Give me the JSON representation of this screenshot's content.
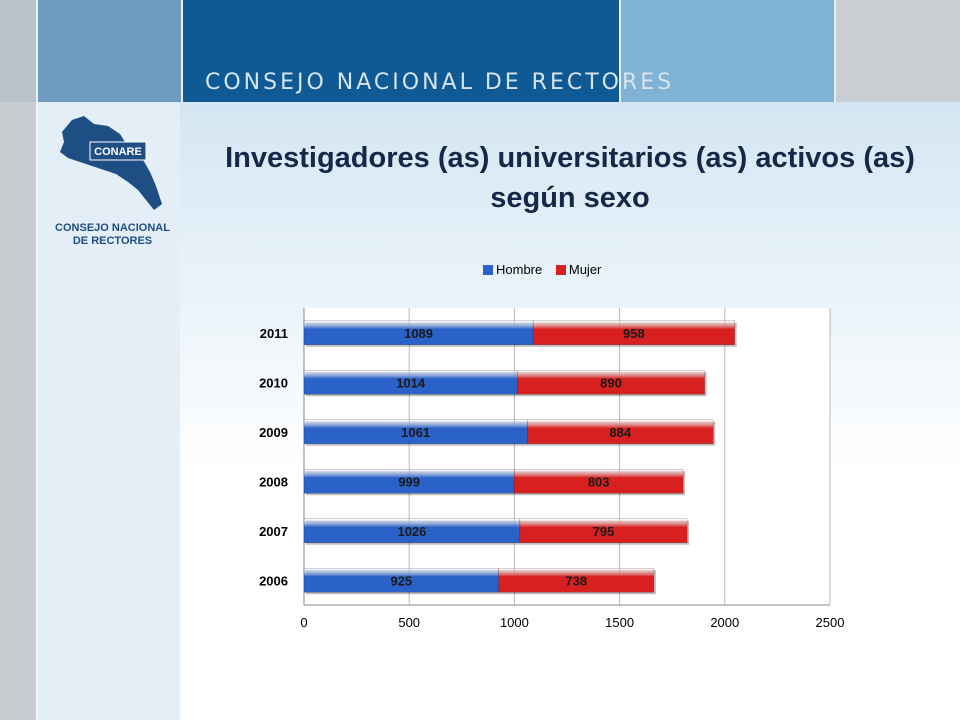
{
  "header": {
    "org_name": "CONSEJO NACIONAL DE RECTORES"
  },
  "logo": {
    "badge": "CONARE",
    "line1": "CONSEJO NACIONAL",
    "line2": "DE RECTORES"
  },
  "title": "Investigadores (as) universitarios (as) activos (as) según sexo",
  "colors": {
    "hombre": "#2a62c9",
    "mujer": "#d82020"
  },
  "chart_data": {
    "type": "bar",
    "orientation": "horizontal",
    "stacked": true,
    "categories": [
      "2006",
      "2007",
      "2008",
      "2009",
      "2010",
      "2011"
    ],
    "series": [
      {
        "name": "Hombre",
        "values": [
          925,
          1026,
          999,
          1061,
          1014,
          1089
        ]
      },
      {
        "name": "Mujer",
        "values": [
          738,
          795,
          803,
          884,
          890,
          958
        ]
      }
    ],
    "xlim": [
      0,
      2500
    ],
    "xticks": [
      0,
      500,
      1000,
      1500,
      2000,
      2500
    ],
    "grid": true,
    "legend": "top"
  }
}
